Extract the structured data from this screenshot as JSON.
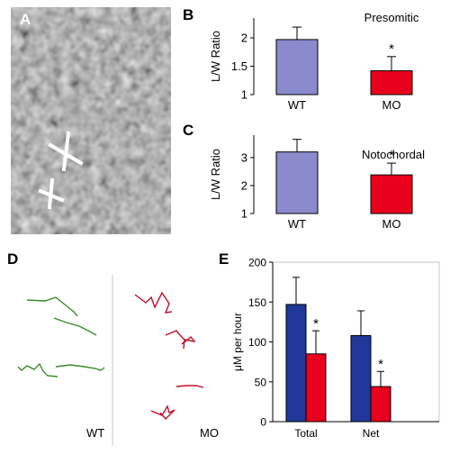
{
  "panels": {
    "a": "A",
    "b": "B",
    "c": "C",
    "d": "D",
    "e": "E"
  },
  "colors": {
    "wt_bar": "#8a8acd",
    "mo_bar": "#e8001c",
    "e_wt": "#1f3899",
    "e_mo": "#e8001c",
    "track_wt": "#3a8a2a",
    "track_mo": "#c0102a"
  },
  "track_labels": {
    "wt": "WT",
    "mo": "MO"
  },
  "chart_data": [
    {
      "id": "B",
      "type": "bar",
      "title": "Presomitic",
      "ylabel": "L/W Ratio",
      "categories": [
        "WT",
        "MO"
      ],
      "values": [
        1.97,
        1.42
      ],
      "errors": [
        0.22,
        0.25
      ],
      "significance": [
        "",
        "*"
      ],
      "ylim": [
        1,
        2.35
      ],
      "yticks": [
        1,
        1.5,
        2
      ],
      "ytick_labels": [
        "1",
        "1.5",
        "2"
      ]
    },
    {
      "id": "C",
      "type": "bar",
      "title": "Notochordal",
      "ylabel": "L/W Ratio",
      "categories": [
        "WT",
        "MO"
      ],
      "values": [
        3.2,
        2.38
      ],
      "errors": [
        0.45,
        0.42
      ],
      "significance": [
        "",
        "*"
      ],
      "ylim": [
        1,
        3.8
      ],
      "yticks": [
        1,
        2,
        3
      ],
      "ytick_labels": [
        "1",
        "2",
        "3"
      ]
    },
    {
      "id": "E",
      "type": "bar",
      "ylabel": "μM per hour",
      "categories": [
        "Total",
        "Net"
      ],
      "series": [
        {
          "values": [
            147,
            108
          ],
          "errors": [
            34,
            31
          ]
        },
        {
          "values": [
            85,
            44
          ],
          "errors": [
            29,
            19
          ]
        }
      ],
      "significance": [
        "*",
        "*"
      ],
      "ylim": [
        0,
        200
      ],
      "yticks": [
        0,
        50,
        100,
        150,
        200
      ],
      "ytick_labels": [
        "0",
        "50",
        "100",
        "150",
        "200"
      ]
    }
  ]
}
